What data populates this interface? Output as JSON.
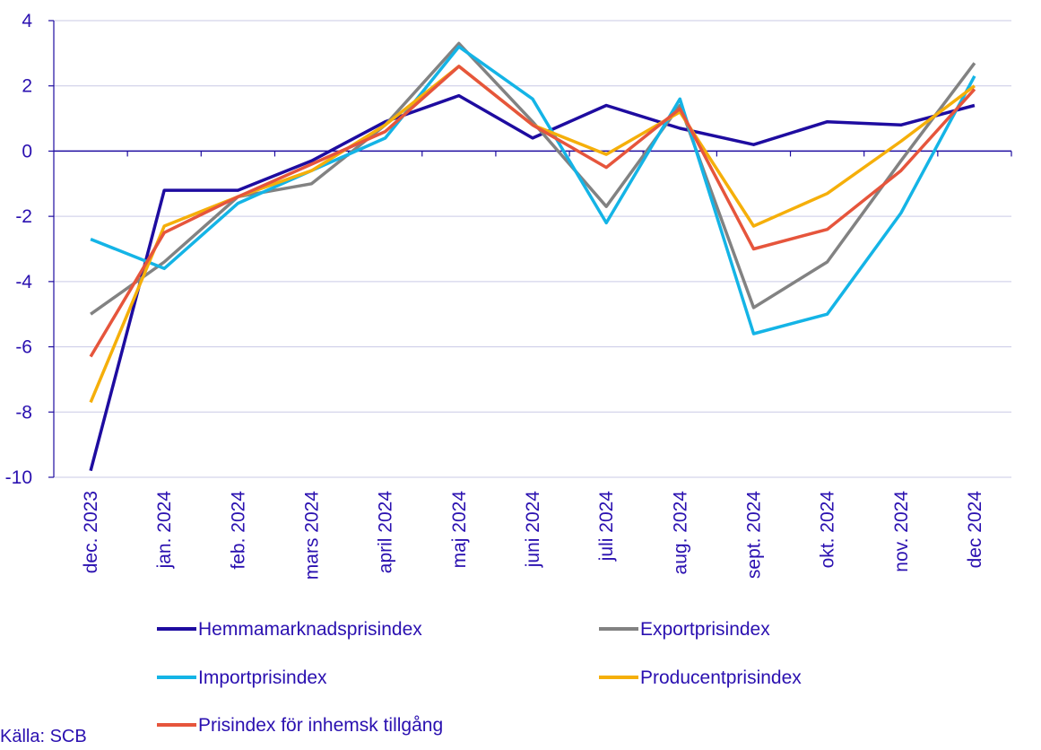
{
  "chart_data": {
    "type": "line",
    "title": "",
    "xlabel": "",
    "ylabel": "",
    "ylim": [
      -10,
      4
    ],
    "yticks": [
      4,
      2,
      0,
      -2,
      -4,
      -6,
      -8,
      -10
    ],
    "ytick_labels": [
      "4",
      "2",
      "0",
      "-2",
      "-4",
      "-6",
      "-8",
      "-10"
    ],
    "grid": true,
    "legend_position": "bottom",
    "categories": [
      "dec. 2023",
      "jan. 2024",
      "feb. 2024",
      "mars 2024",
      "april 2024",
      "maj 2024",
      "juni 2024",
      "juli 2024",
      "aug. 2024",
      "sept. 2024",
      "okt. 2024",
      "nov. 2024",
      "dec 2024"
    ],
    "series": [
      {
        "name": "Hemmamarknadsprisindex",
        "color": "#1e0ca0",
        "values": [
          -9.8,
          -1.2,
          -1.2,
          -0.3,
          0.9,
          1.7,
          0.4,
          1.4,
          0.7,
          0.2,
          0.9,
          0.8,
          1.4
        ]
      },
      {
        "name": "Exportprisindex",
        "color": "#828282",
        "values": [
          -5.0,
          -3.4,
          -1.4,
          -1.0,
          0.8,
          3.3,
          0.9,
          -1.7,
          1.4,
          -4.8,
          -3.4,
          -0.3,
          2.7
        ]
      },
      {
        "name": "Importprisindex",
        "color": "#14b4e6",
        "values": [
          -2.7,
          -3.6,
          -1.6,
          -0.6,
          0.4,
          3.2,
          1.6,
          -2.2,
          1.6,
          -5.6,
          -5.0,
          -1.9,
          2.3
        ]
      },
      {
        "name": "Producentprisindex",
        "color": "#f5af0a",
        "values": [
          -7.7,
          -2.3,
          -1.4,
          -0.6,
          0.8,
          2.6,
          0.8,
          -0.1,
          1.2,
          -2.3,
          -1.3,
          0.3,
          2.0
        ]
      },
      {
        "name": "Prisindex för inhemsk tillgång",
        "color": "#e6553c",
        "values": [
          -6.3,
          -2.5,
          -1.4,
          -0.4,
          0.6,
          2.6,
          0.8,
          -0.5,
          1.3,
          -3.0,
          -2.4,
          -0.6,
          1.9
        ]
      }
    ]
  },
  "source": "Källa: SCB"
}
